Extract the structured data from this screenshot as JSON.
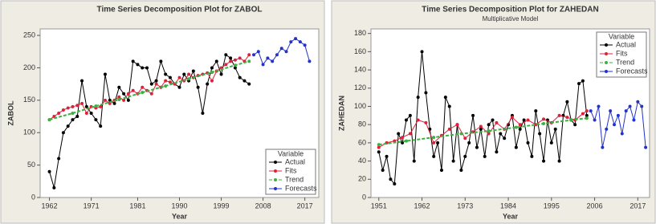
{
  "chart_data": [
    {
      "type": "line",
      "title": "Time Series Decomposition Plot for ZABOL",
      "x_label": "Year",
      "y_label": "ZABOL",
      "xlim": [
        1960,
        2020
      ],
      "xticks": [
        1962,
        1971,
        1981,
        1990,
        1999,
        2008,
        2017
      ],
      "ylim": [
        0,
        260
      ],
      "yticks": [
        0,
        50,
        100,
        150,
        200,
        250
      ],
      "legend_title": "Variable",
      "legend": "bottom-right",
      "series": [
        {
          "name": "Actual",
          "color": "#000000",
          "x": [
            1962,
            1963,
            1964,
            1965,
            1966,
            1967,
            1968,
            1969,
            1970,
            1971,
            1972,
            1973,
            1974,
            1975,
            1976,
            1977,
            1978,
            1979,
            1980,
            1981,
            1982,
            1983,
            1984,
            1985,
            1986,
            1987,
            1988,
            1989,
            1990,
            1991,
            1992,
            1993,
            1994,
            1995,
            1996,
            1997,
            1998,
            1999,
            2000,
            2001,
            2002,
            2003,
            2004,
            2005
          ],
          "values": [
            40,
            15,
            60,
            100,
            110,
            120,
            125,
            180,
            140,
            130,
            120,
            110,
            190,
            150,
            145,
            170,
            160,
            150,
            210,
            205,
            200,
            200,
            175,
            180,
            210,
            190,
            185,
            175,
            170,
            190,
            180,
            195,
            170,
            130,
            175,
            200,
            210,
            190,
            220,
            215,
            200,
            185,
            180,
            175
          ]
        },
        {
          "name": "Fits",
          "color": "#e0203a",
          "x": [
            1962,
            1963,
            1964,
            1965,
            1966,
            1967,
            1968,
            1969,
            1970,
            1971,
            1972,
            1973,
            1974,
            1975,
            1976,
            1977,
            1978,
            1979,
            1980,
            1981,
            1982,
            1983,
            1984,
            1985,
            1986,
            1987,
            1988,
            1989,
            1990,
            1991,
            1992,
            1993,
            1994,
            1995,
            1996,
            1997,
            1998,
            1999,
            2000,
            2001,
            2002,
            2003,
            2004,
            2005
          ],
          "values": [
            120,
            125,
            130,
            135,
            138,
            140,
            142,
            145,
            130,
            140,
            138,
            140,
            150,
            145,
            150,
            155,
            150,
            160,
            165,
            160,
            170,
            165,
            160,
            175,
            170,
            180,
            178,
            175,
            185,
            180,
            190,
            185,
            188,
            190,
            192,
            180,
            195,
            200,
            205,
            210,
            212,
            215,
            210,
            220
          ]
        },
        {
          "name": "Trend",
          "color": "#3cb043",
          "x": [
            1962,
            1967,
            1972,
            1977,
            1982,
            1987,
            1992,
            1997,
            2002,
            2005
          ],
          "values": [
            120,
            130,
            141,
            151,
            162,
            172,
            183,
            193,
            204,
            210
          ]
        },
        {
          "name": "Forecasts",
          "color": "#2233cc",
          "x": [
            2006,
            2007,
            2008,
            2009,
            2010,
            2011,
            2012,
            2013,
            2014,
            2015,
            2016,
            2017,
            2018
          ],
          "values": [
            220,
            225,
            205,
            215,
            210,
            220,
            230,
            225,
            240,
            245,
            240,
            235,
            210
          ]
        }
      ]
    },
    {
      "type": "line",
      "title": "Time Series Decomposition Plot for ZAHEDAN",
      "subtitle": "Multiplicative Model",
      "x_label": "Year",
      "y_label": "ZAHEDAN",
      "xlim": [
        1949,
        2020
      ],
      "xticks": [
        1951,
        1962,
        1973,
        1984,
        1995,
        2006,
        2017
      ],
      "ylim": [
        0,
        185
      ],
      "yticks": [
        0,
        20,
        40,
        60,
        80,
        100,
        120,
        140,
        160,
        180
      ],
      "legend_title": "Variable",
      "legend": "top-right",
      "series": [
        {
          "name": "Actual",
          "color": "#000000",
          "x": [
            1951,
            1952,
            1953,
            1954,
            1955,
            1956,
            1957,
            1958,
            1959,
            1960,
            1961,
            1962,
            1963,
            1964,
            1965,
            1966,
            1967,
            1968,
            1969,
            1970,
            1971,
            1972,
            1973,
            1974,
            1975,
            1976,
            1977,
            1978,
            1979,
            1980,
            1981,
            1982,
            1983,
            1984,
            1985,
            1986,
            1987,
            1988,
            1989,
            1990,
            1991,
            1992,
            1993,
            1994,
            1995,
            1996,
            1997,
            1998,
            1999,
            2000,
            2001,
            2002,
            2003,
            2004
          ],
          "values": [
            50,
            30,
            45,
            20,
            15,
            70,
            60,
            85,
            90,
            40,
            110,
            160,
            115,
            75,
            45,
            60,
            30,
            110,
            100,
            40,
            80,
            30,
            45,
            60,
            90,
            55,
            75,
            45,
            80,
            85,
            50,
            70,
            65,
            80,
            90,
            55,
            75,
            85,
            60,
            45,
            95,
            70,
            40,
            85,
            60,
            75,
            40,
            90,
            105,
            85,
            80,
            125,
            128,
            90
          ]
        },
        {
          "name": "Fits",
          "color": "#e0203a",
          "x": [
            1951,
            1953,
            1955,
            1957,
            1959,
            1961,
            1963,
            1965,
            1967,
            1969,
            1971,
            1973,
            1975,
            1977,
            1979,
            1981,
            1983,
            1985,
            1987,
            1989,
            1991,
            1993,
            1995,
            1997,
            1999,
            2001,
            2003,
            2004
          ],
          "values": [
            55,
            60,
            62,
            66,
            70,
            85,
            82,
            60,
            68,
            75,
            80,
            65,
            72,
            78,
            70,
            82,
            75,
            88,
            80,
            85,
            80,
            86,
            82,
            90,
            88,
            85,
            92,
            95
          ]
        },
        {
          "name": "Trend",
          "color": "#3cb043",
          "x": [
            1951,
            1958,
            1965,
            1972,
            1979,
            1986,
            1993,
            2000,
            2004
          ],
          "values": [
            58,
            62,
            66,
            70,
            73,
            77,
            81,
            85,
            87
          ]
        },
        {
          "name": "Forecasts",
          "color": "#2233cc",
          "x": [
            2005,
            2006,
            2007,
            2008,
            2009,
            2010,
            2011,
            2012,
            2013,
            2014,
            2015,
            2016,
            2017,
            2018,
            2019
          ],
          "values": [
            95,
            85,
            100,
            55,
            75,
            95,
            80,
            90,
            70,
            95,
            100,
            85,
            105,
            100,
            55
          ]
        }
      ]
    }
  ]
}
